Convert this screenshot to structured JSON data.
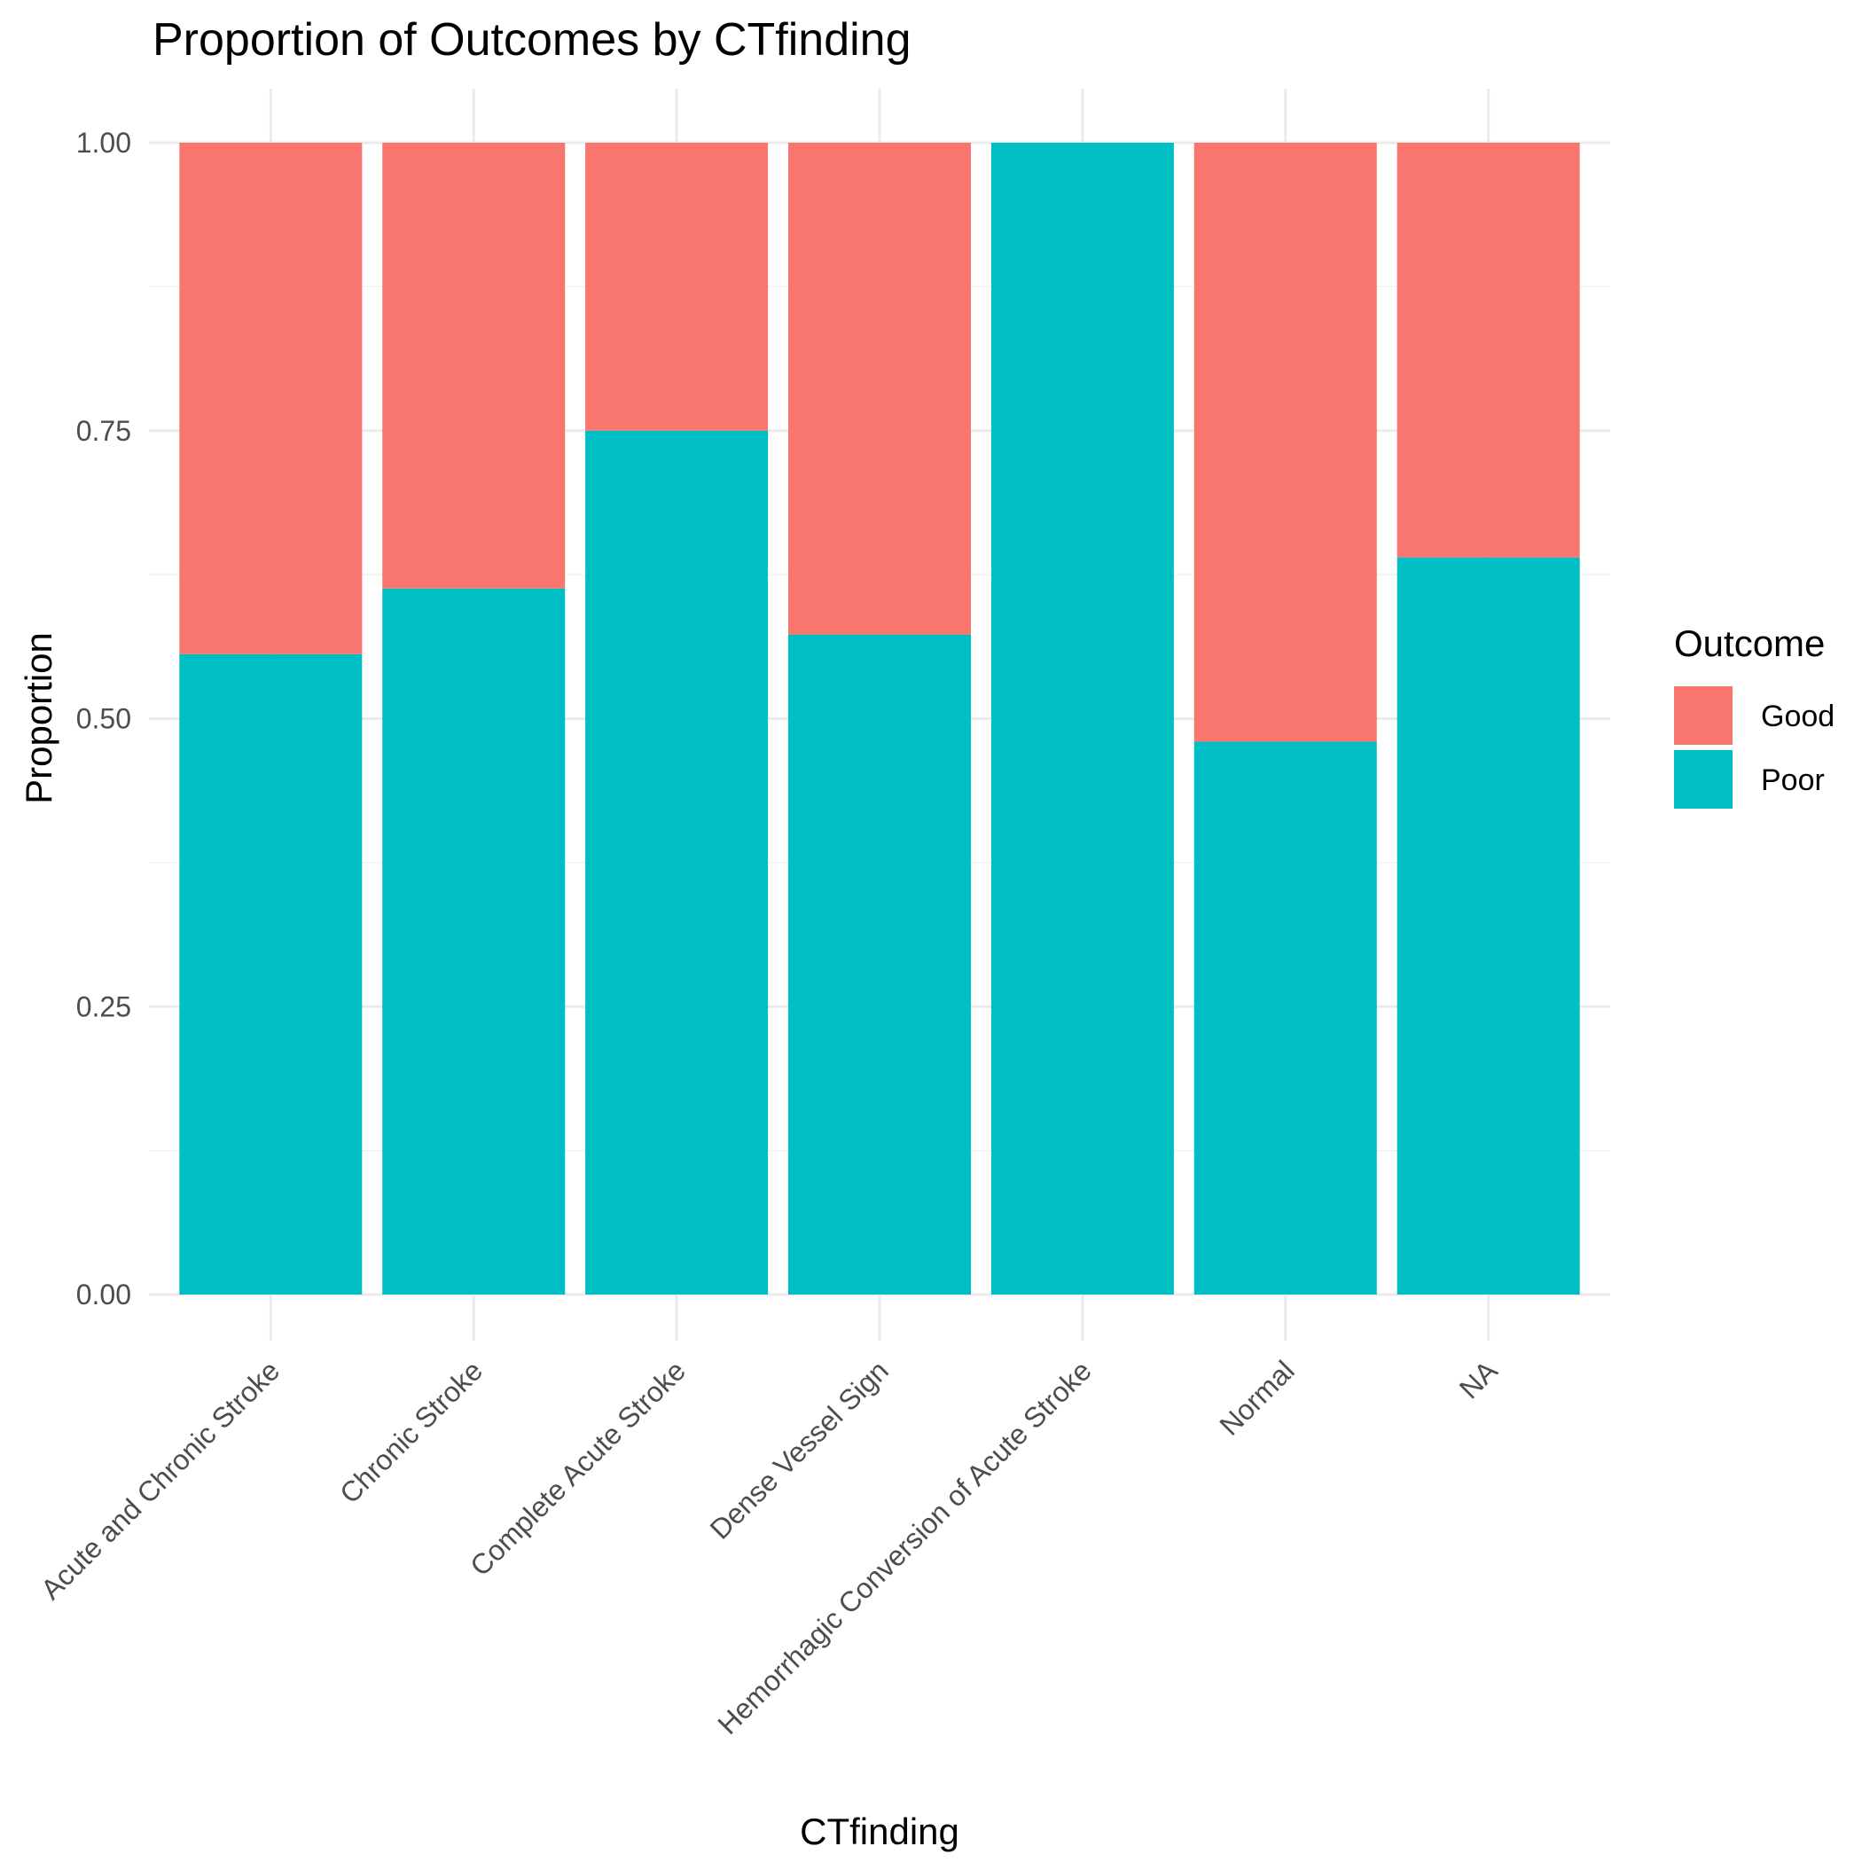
{
  "chart_data": {
    "type": "bar",
    "stacked": true,
    "title": "Proportion of Outcomes by CTfinding",
    "xlabel": "CTfinding",
    "ylabel": "Proportion",
    "ylim": [
      0,
      1
    ],
    "yticks": [
      "0.00",
      "0.25",
      "0.50",
      "0.75",
      "1.00"
    ],
    "grid": true,
    "legend_title": "Outcome",
    "legend_position": "right",
    "categories": [
      "Acute and Chronic Stroke",
      "Chronic Stroke",
      "Complete Acute Stroke",
      "Dense Vessel Sign",
      "Hemorrhagic Conversion of Acute Stroke",
      "Normal",
      "NA"
    ],
    "series": [
      {
        "name": "Poor",
        "color": "#00BFC4",
        "values": [
          0.556,
          0.613,
          0.75,
          0.573,
          1.0,
          0.48,
          0.64
        ]
      },
      {
        "name": "Good",
        "color": "#F8766D",
        "values": [
          0.444,
          0.387,
          0.25,
          0.427,
          0.0,
          0.52,
          0.36
        ]
      }
    ],
    "legend_order": [
      "Good",
      "Poor"
    ]
  }
}
